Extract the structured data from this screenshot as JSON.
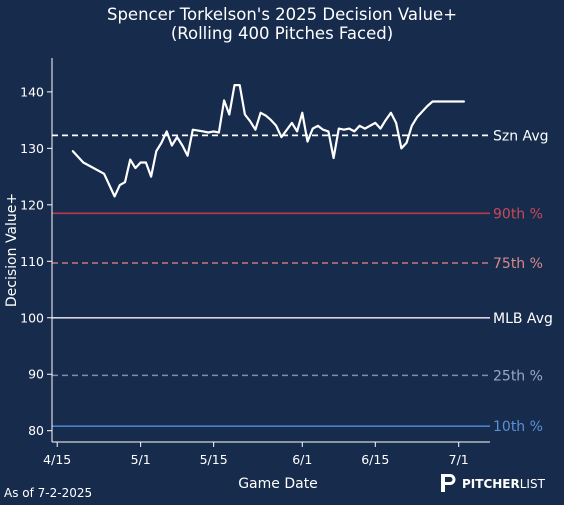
{
  "chart_data": {
    "type": "line",
    "title": "Spencer Torkelson's 2025 Decision Value+",
    "subtitle": "(Rolling 400 Pitches Faced)",
    "xlabel": "Game Date",
    "ylabel": "Decision Value+",
    "ylim": [
      78,
      146
    ],
    "xlim": [
      "2025-04-14",
      "2025-07-07"
    ],
    "x_ticks": [
      {
        "date": "2025-04-15",
        "label": "4/15"
      },
      {
        "date": "2025-05-01",
        "label": "5/1"
      },
      {
        "date": "2025-05-15",
        "label": "5/15"
      },
      {
        "date": "2025-06-01",
        "label": "6/1"
      },
      {
        "date": "2025-06-15",
        "label": "6/15"
      },
      {
        "date": "2025-07-01",
        "label": "7/1"
      }
    ],
    "y_ticks": [
      80,
      90,
      100,
      110,
      120,
      130,
      140
    ],
    "grid": false,
    "series": [
      {
        "color": "#ffffff",
        "x": [
          "2025-04-18",
          "2025-04-20",
          "2025-04-22",
          "2025-04-24",
          "2025-04-26",
          "2025-04-27",
          "2025-04-28",
          "2025-04-29",
          "2025-04-30",
          "2025-05-01",
          "2025-05-02",
          "2025-05-03",
          "2025-05-04",
          "2025-05-05",
          "2025-05-06",
          "2025-05-07",
          "2025-05-08",
          "2025-05-09",
          "2025-05-10",
          "2025-05-11",
          "2025-05-13",
          "2025-05-14",
          "2025-05-15",
          "2025-05-16",
          "2025-05-17",
          "2025-05-18",
          "2025-05-19",
          "2025-05-20",
          "2025-05-21",
          "2025-05-22",
          "2025-05-23",
          "2025-05-24",
          "2025-05-25",
          "2025-05-26",
          "2025-05-27",
          "2025-05-28",
          "2025-05-30",
          "2025-05-31",
          "2025-06-01",
          "2025-06-02",
          "2025-06-03",
          "2025-06-04",
          "2025-06-05",
          "2025-06-06",
          "2025-06-07",
          "2025-06-08",
          "2025-06-09",
          "2025-06-10",
          "2025-06-11",
          "2025-06-12",
          "2025-06-13",
          "2025-06-15",
          "2025-06-16",
          "2025-06-17",
          "2025-06-18",
          "2025-06-19",
          "2025-06-20",
          "2025-06-21",
          "2025-06-22",
          "2025-06-23",
          "2025-06-24",
          "2025-06-25",
          "2025-06-26",
          "2025-06-27",
          "2025-06-28",
          "2025-06-29",
          "2025-06-30",
          "2025-07-01",
          "2025-07-02"
        ],
        "values": [
          129.5,
          127.5,
          126.5,
          125.5,
          121.5,
          123.5,
          124.0,
          128.0,
          126.5,
          127.5,
          127.5,
          125.0,
          129.5,
          131.0,
          133.0,
          130.5,
          132.0,
          130.5,
          128.7,
          133.3,
          133.0,
          132.8,
          133.0,
          132.8,
          138.5,
          136.0,
          141.2,
          141.2,
          136.0,
          134.8,
          133.3,
          136.3,
          135.8,
          135.0,
          134.0,
          132.0,
          134.5,
          133.0,
          136.3,
          131.2,
          133.5,
          134.0,
          133.3,
          133.0,
          128.3,
          133.5,
          133.3,
          133.5,
          133.0,
          134.0,
          133.5,
          134.5,
          133.5,
          135.0,
          136.3,
          134.5,
          130.0,
          131.0,
          134.0,
          135.5,
          136.5,
          137.5,
          138.3,
          138.3,
          138.3,
          138.3,
          138.3,
          138.3,
          138.3
        ]
      }
    ],
    "reference_lines": [
      {
        "label": "Szn Avg",
        "value": 132.3,
        "color": "#ffffff",
        "style": "dashed",
        "label_color": "#ffffff"
      },
      {
        "label": "90th %",
        "value": 118.5,
        "color": "#b83a4b",
        "style": "solid",
        "label_color": "#c64a58"
      },
      {
        "label": "75th %",
        "value": 109.7,
        "color": "#c77a7e",
        "style": "dashed",
        "label_color": "#d78a8a"
      },
      {
        "label": "MLB Avg",
        "value": 100,
        "color": "#d4d4dc",
        "style": "solid",
        "label_color": "#ffffff"
      },
      {
        "label": "25th %",
        "value": 89.8,
        "color": "#7f8cb4",
        "style": "dashed",
        "label_color": "#9aa7cc"
      },
      {
        "label": "10th %",
        "value": 80.8,
        "color": "#4a7fc7",
        "style": "solid",
        "label_color": "#5b8fd6"
      }
    ]
  },
  "footer": {
    "as_of": "As of 7-2-2025",
    "brand_label": "PITCHER",
    "brand_label_bold": "LIST"
  }
}
